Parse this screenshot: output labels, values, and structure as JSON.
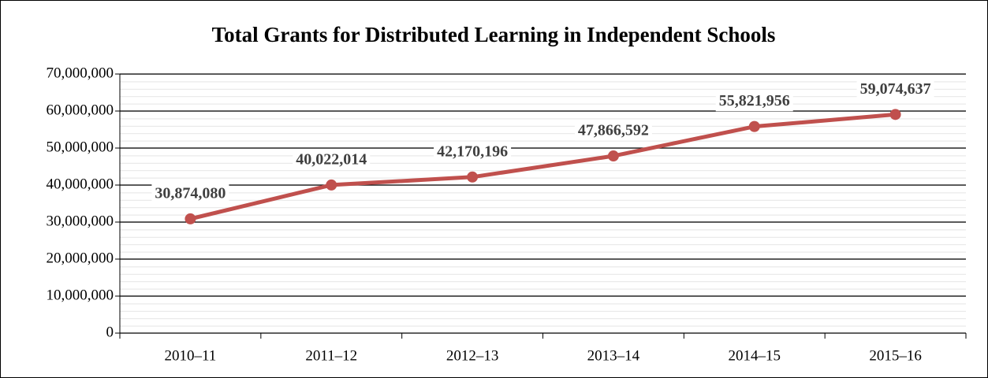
{
  "chart_data": {
    "type": "line",
    "title": "Total Grants for Distributed Learning in Independent Schools",
    "categories": [
      "2010–11",
      "2011–12",
      "2012–13",
      "2013–14",
      "2014–15",
      "2015–16"
    ],
    "series": [
      {
        "name": "Total Grants",
        "color": "#c0504d",
        "values": [
          30874080,
          40022014,
          42170196,
          47866592,
          55821956,
          59074637
        ],
        "value_labels": [
          "30,874,080",
          "40,022,014",
          "42,170,196",
          "47,866,592",
          "55,821,956",
          "59,074,637"
        ]
      }
    ],
    "ylim": [
      0,
      70000000
    ],
    "yticks": [
      0,
      {
        "value": 10000000,
        "label": "10,000,000"
      },
      {
        "value": 20000000,
        "label": "20,000,000"
      },
      {
        "value": 30000000,
        "label": "30,000,000"
      },
      {
        "value": 40000000,
        "label": "40,000,000"
      },
      {
        "value": 50000000,
        "label": "50,000,000"
      },
      {
        "value": 60000000,
        "label": "60,000,000"
      },
      {
        "value": 70000000,
        "label": "70,000,000"
      }
    ],
    "grid": true
  }
}
